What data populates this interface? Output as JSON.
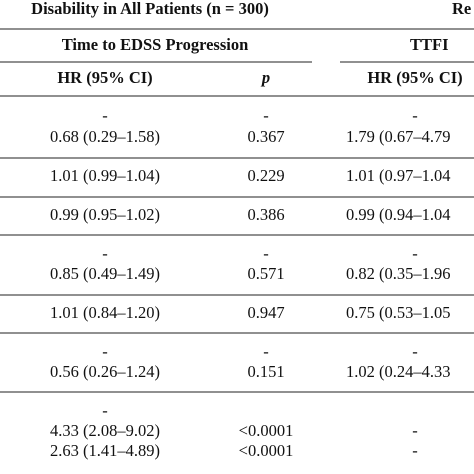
{
  "table": {
    "title": "Disability in All Patients (n = 300)",
    "title_right": "Re",
    "group_headers": [
      "Time to EDSS Progression",
      "TTFI"
    ],
    "column_headers": [
      "HR (95% CI)",
      "p",
      "HR (95% CI)"
    ],
    "rows": [
      [
        "-",
        "-",
        "-"
      ],
      [
        "0.68 (0.29–1.58)",
        "0.367",
        "1.79 (0.67–4.79"
      ],
      [
        "1.01 (0.99–1.04)",
        "0.229",
        "1.01 (0.97–1.04"
      ],
      [
        "0.99 (0.95–1.02)",
        "0.386",
        "0.99 (0.94–1.04"
      ],
      [
        "-",
        "-",
        "-"
      ],
      [
        "0.85 (0.49–1.49)",
        "0.571",
        "0.82 (0.35–1.96"
      ],
      [
        "1.01 (0.84–1.20)",
        "0.947",
        "0.75 (0.53–1.05"
      ],
      [
        "-",
        "-",
        "-"
      ],
      [
        "0.56 (0.26–1.24)",
        "0.151",
        "1.02 (0.24–4.33"
      ],
      [
        "-",
        "",
        ""
      ],
      [
        "4.33 (2.08–9.02)",
        "<0.0001",
        "-"
      ],
      [
        "2.63 (1.41–4.89)",
        "<0.0001",
        "-"
      ]
    ]
  }
}
